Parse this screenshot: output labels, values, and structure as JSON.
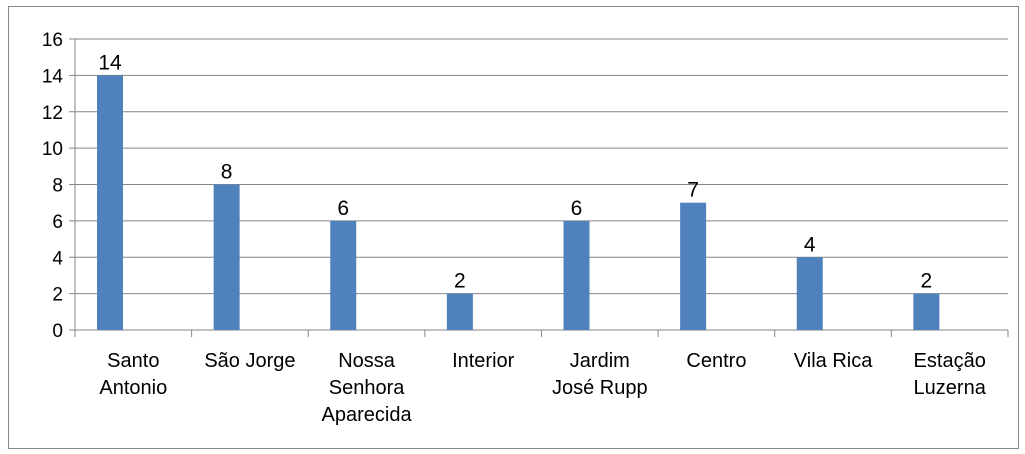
{
  "chart_data": {
    "type": "bar",
    "categories": [
      [
        "Santo",
        "Antonio"
      ],
      [
        "São Jorge"
      ],
      [
        "Nossa",
        "Senhora",
        "Aparecida"
      ],
      [
        "Interior"
      ],
      [
        "Jardim",
        "José Rupp"
      ],
      [
        "Centro"
      ],
      [
        "Vila Rica"
      ],
      [
        "Estação",
        "Luzerna"
      ]
    ],
    "values": [
      14,
      8,
      6,
      2,
      6,
      7,
      4,
      2
    ],
    "data_labels": [
      "14",
      "8",
      "6",
      "2",
      "6",
      "7",
      "4",
      "2"
    ],
    "ylim": [
      0,
      16
    ],
    "y_ticks": [
      0,
      2,
      4,
      6,
      8,
      10,
      12,
      14,
      16
    ],
    "grid": true,
    "legend": "none",
    "title": "",
    "xlabel": "",
    "ylabel": "",
    "colors": {
      "bar": "#4f81bd",
      "grid": "#868686",
      "axis": "#868686"
    }
  }
}
